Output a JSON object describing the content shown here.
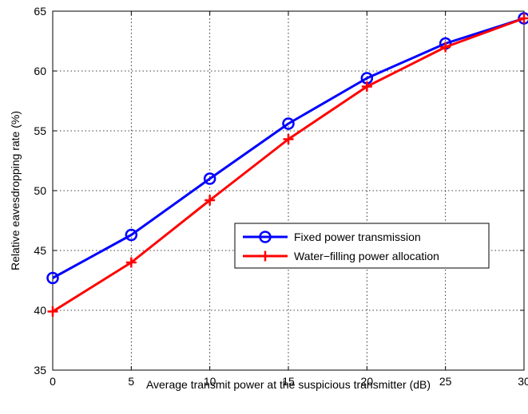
{
  "chart_data": {
    "type": "line",
    "xlabel": "Average transmit power at the suspicious transmitter (dB)",
    "ylabel": "Relative eavesdropping rate (%)",
    "xlim": [
      0,
      30
    ],
    "ylim": [
      35,
      65
    ],
    "xticks": [
      0,
      5,
      10,
      15,
      20,
      25,
      30
    ],
    "yticks": [
      35,
      40,
      45,
      50,
      55,
      60,
      65
    ],
    "grid": true,
    "legend_position": "center-right",
    "x": [
      0,
      5,
      10,
      15,
      20,
      25,
      30
    ],
    "series": [
      {
        "name": "Fixed power transmission",
        "values": [
          42.7,
          46.3,
          51.0,
          55.6,
          59.4,
          62.3,
          64.4
        ],
        "color": "#0000ff",
        "marker": "circle"
      },
      {
        "name": "Water−filling power allocation",
        "values": [
          39.9,
          44.0,
          49.2,
          54.3,
          58.7,
          62.0,
          64.4
        ],
        "color": "#ff0000",
        "marker": "plus"
      }
    ]
  }
}
